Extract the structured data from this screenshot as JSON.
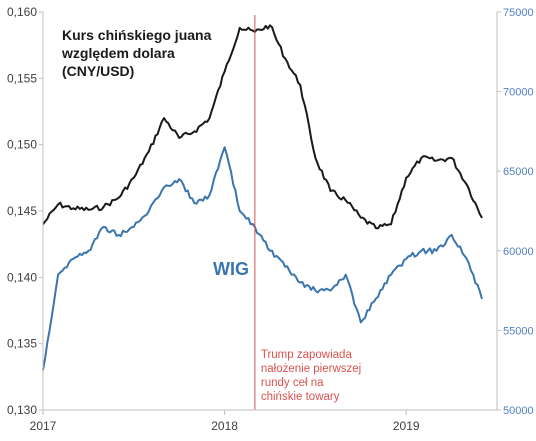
{
  "chart_data": {
    "type": "line",
    "title_lines": [
      "Kurs chińskiego juana",
      "względem dolara",
      "(CNY/USD)"
    ],
    "x_ticks": [
      "2017",
      "2018",
      "2019"
    ],
    "x_range": [
      "2017-01",
      "2019-07"
    ],
    "y_left": {
      "range": [
        0.13,
        0.16
      ],
      "ticks": [
        "0,160",
        "0,155",
        "0,150",
        "0,145",
        "0,140",
        "0,135",
        "0,130"
      ]
    },
    "y_right": {
      "range": [
        50000,
        75000
      ],
      "ticks": [
        "75000",
        "70000",
        "65000",
        "60000",
        "55000",
        "50000"
      ]
    },
    "series": [
      {
        "axis": "left",
        "color": "#1a1a1a",
        "points": [
          [
            "2017-01",
            0.144
          ],
          [
            "2017-02",
            0.1455
          ],
          [
            "2017-03",
            0.1452
          ],
          [
            "2017-04",
            0.1451
          ],
          [
            "2017-05",
            0.1453
          ],
          [
            "2017-06",
            0.146
          ],
          [
            "2017-07",
            0.1475
          ],
          [
            "2017-08",
            0.1495
          ],
          [
            "2017-09",
            0.152
          ],
          [
            "2017-10",
            0.1505
          ],
          [
            "2017-11",
            0.151
          ],
          [
            "2017-12",
            0.152
          ],
          [
            "2018-01",
            0.1555
          ],
          [
            "2018-02",
            0.1588
          ],
          [
            "2018-03",
            0.1585
          ],
          [
            "2018-04",
            0.159
          ],
          [
            "2018-05",
            0.1565
          ],
          [
            "2018-06",
            0.1545
          ],
          [
            "2018-07",
            0.149
          ],
          [
            "2018-08",
            0.1465
          ],
          [
            "2018-09",
            0.1458
          ],
          [
            "2018-10",
            0.1445
          ],
          [
            "2018-11",
            0.1437
          ],
          [
            "2018-12",
            0.144
          ],
          [
            "2019-01",
            0.1475
          ],
          [
            "2019-02",
            0.149
          ],
          [
            "2019-03",
            0.1488
          ],
          [
            "2019-04",
            0.149
          ],
          [
            "2019-05",
            0.147
          ],
          [
            "2019-06",
            0.1445
          ]
        ]
      },
      {
        "axis": "right",
        "label": "WIG",
        "color": "#3a75b0",
        "points": [
          [
            "2017-01",
            52500
          ],
          [
            "2017-02",
            58500
          ],
          [
            "2017-03",
            59500
          ],
          [
            "2017-04",
            60000
          ],
          [
            "2017-05",
            61500
          ],
          [
            "2017-06",
            61000
          ],
          [
            "2017-07",
            61500
          ],
          [
            "2017-08",
            62500
          ],
          [
            "2017-09",
            64000
          ],
          [
            "2017-10",
            64500
          ],
          [
            "2017-11",
            63000
          ],
          [
            "2017-12",
            63500
          ],
          [
            "2018-01",
            66500
          ],
          [
            "2018-02",
            62500
          ],
          [
            "2018-03",
            61500
          ],
          [
            "2018-04",
            60000
          ],
          [
            "2018-05",
            59000
          ],
          [
            "2018-06",
            58000
          ],
          [
            "2018-07",
            57500
          ],
          [
            "2018-08",
            57500
          ],
          [
            "2018-09",
            58500
          ],
          [
            "2018-10",
            55500
          ],
          [
            "2018-11",
            57000
          ],
          [
            "2018-12",
            58500
          ],
          [
            "2019-01",
            59500
          ],
          [
            "2019-02",
            60000
          ],
          [
            "2019-03",
            60000
          ],
          [
            "2019-04",
            61000
          ],
          [
            "2019-05",
            59500
          ],
          [
            "2019-06",
            57000
          ]
        ]
      }
    ],
    "annotation": {
      "date": "2018-03",
      "color": "#d9534f",
      "lines": [
        "Trump zapowiada",
        "nałożenie pierwszej",
        "rundy ceł na",
        "chińskie towary"
      ]
    }
  }
}
